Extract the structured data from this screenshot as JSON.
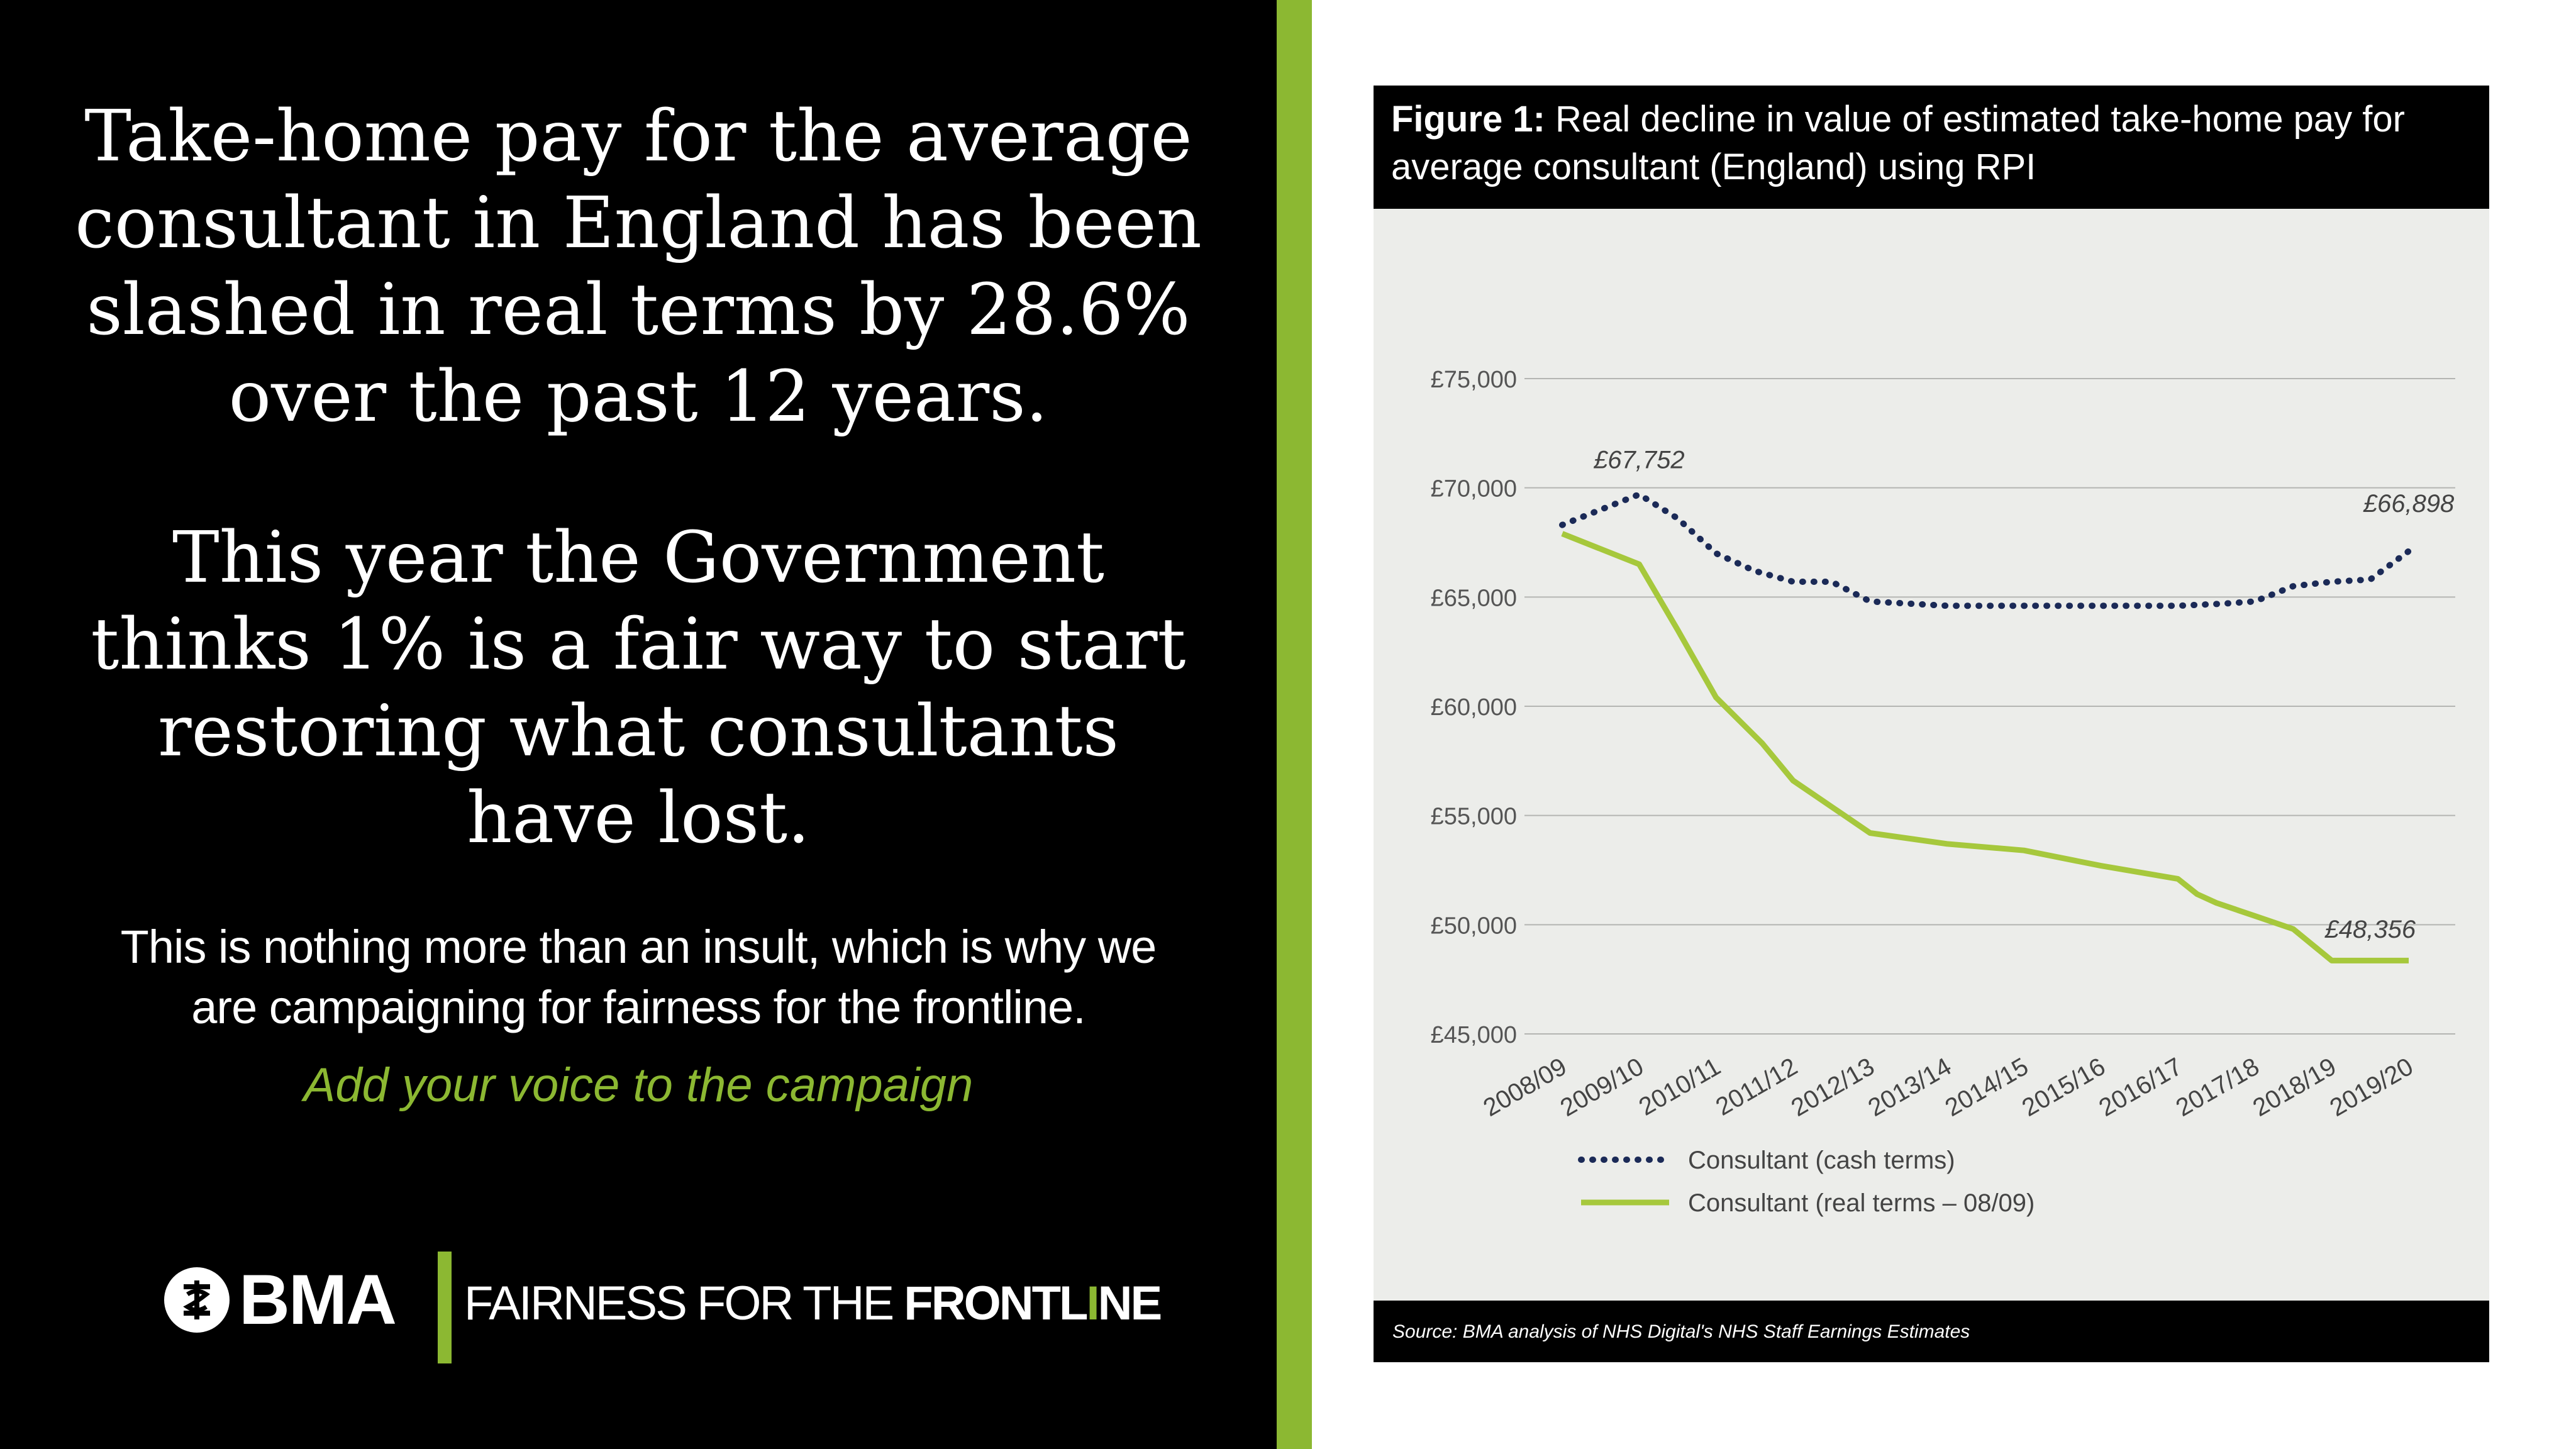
{
  "colors": {
    "accent_green": "#8cb832",
    "cash_line": "#1b2a57",
    "real_line": "#a6c83c"
  },
  "headline_1": [
    "Take-home pay for the average",
    "consultant in England has been",
    "slashed in real terms by 28.6%",
    "over the past 12 years."
  ],
  "headline_2": [
    "This year the Government",
    "thinks 1% is a fair way to start",
    "restoring what consultants",
    "have lost."
  ],
  "body": [
    "This is nothing more than an insult, which is why we",
    "are campaigning for fairness for the frontline."
  ],
  "cta": "Add your voice to the campaign",
  "logo": {
    "bma": "BMA",
    "tagline_a": "FAIRNESS FOR THE ",
    "tagline_b": "FRONTL",
    "tagline_c": "I",
    "tagline_d": "NE"
  },
  "figure": {
    "label": "Figure 1:",
    "title": " Real decline in value of estimated take-home pay for average consultant (England) using RPI",
    "source": "Source: BMA analysis of NHS Digital's NHS Staff Earnings Estimates"
  },
  "chart_data": {
    "type": "line",
    "title": "Real decline in value of estimated take-home pay for average consultant (England) using RPI",
    "xlabel": "",
    "ylabel": "",
    "ylim": [
      45000,
      75000
    ],
    "grid": true,
    "y_ticks": [
      {
        "value": 75000,
        "label": "£75,000"
      },
      {
        "value": 70000,
        "label": "£70,000"
      },
      {
        "value": 65000,
        "label": "£65,000"
      },
      {
        "value": 60000,
        "label": "£60,000"
      },
      {
        "value": 55000,
        "label": "£55,000"
      },
      {
        "value": 50000,
        "label": "£50,000"
      },
      {
        "value": 45000,
        "label": "£45,000"
      }
    ],
    "categories": [
      "2008/09",
      "2009/10",
      "2010/11",
      "2011/12",
      "2012/13",
      "2013/14",
      "2014/15",
      "2015/16",
      "2016/17",
      "2017/18",
      "2018/19",
      "2019/20"
    ],
    "series": [
      {
        "name": "Consultant (cash terms)",
        "style": "dotted",
        "x": [
          0,
          0.5,
          1,
          1.5,
          2,
          2.5,
          3,
          3.5,
          4,
          5,
          6,
          7,
          8,
          8.6,
          9,
          9.5,
          10,
          10.5,
          11
        ],
        "values": [
          68300,
          69000,
          69700,
          68600,
          67000,
          66200,
          65700,
          65700,
          64800,
          64600,
          64600,
          64600,
          64600,
          64700,
          64800,
          65500,
          65700,
          65800,
          67100
        ]
      },
      {
        "name": "Consultant (real terms – 08/09)",
        "style": "solid",
        "x": [
          0,
          1,
          1.5,
          2,
          2.6,
          3,
          4,
          5,
          6,
          7,
          8,
          8.25,
          8.5,
          9,
          9.5,
          10,
          10.5,
          11
        ],
        "values": [
          67900,
          66500,
          63500,
          60400,
          58300,
          56600,
          54200,
          53700,
          53400,
          52700,
          52100,
          51400,
          51000,
          50400,
          49800,
          48356,
          48356,
          48356
        ]
      }
    ],
    "annotations": [
      {
        "text": "£67,752",
        "x": 1,
        "y": 70900
      },
      {
        "text": "£66,898",
        "x": 11,
        "y": 68900
      },
      {
        "text": "£48,356",
        "x": 10.5,
        "y": 49400
      }
    ]
  }
}
